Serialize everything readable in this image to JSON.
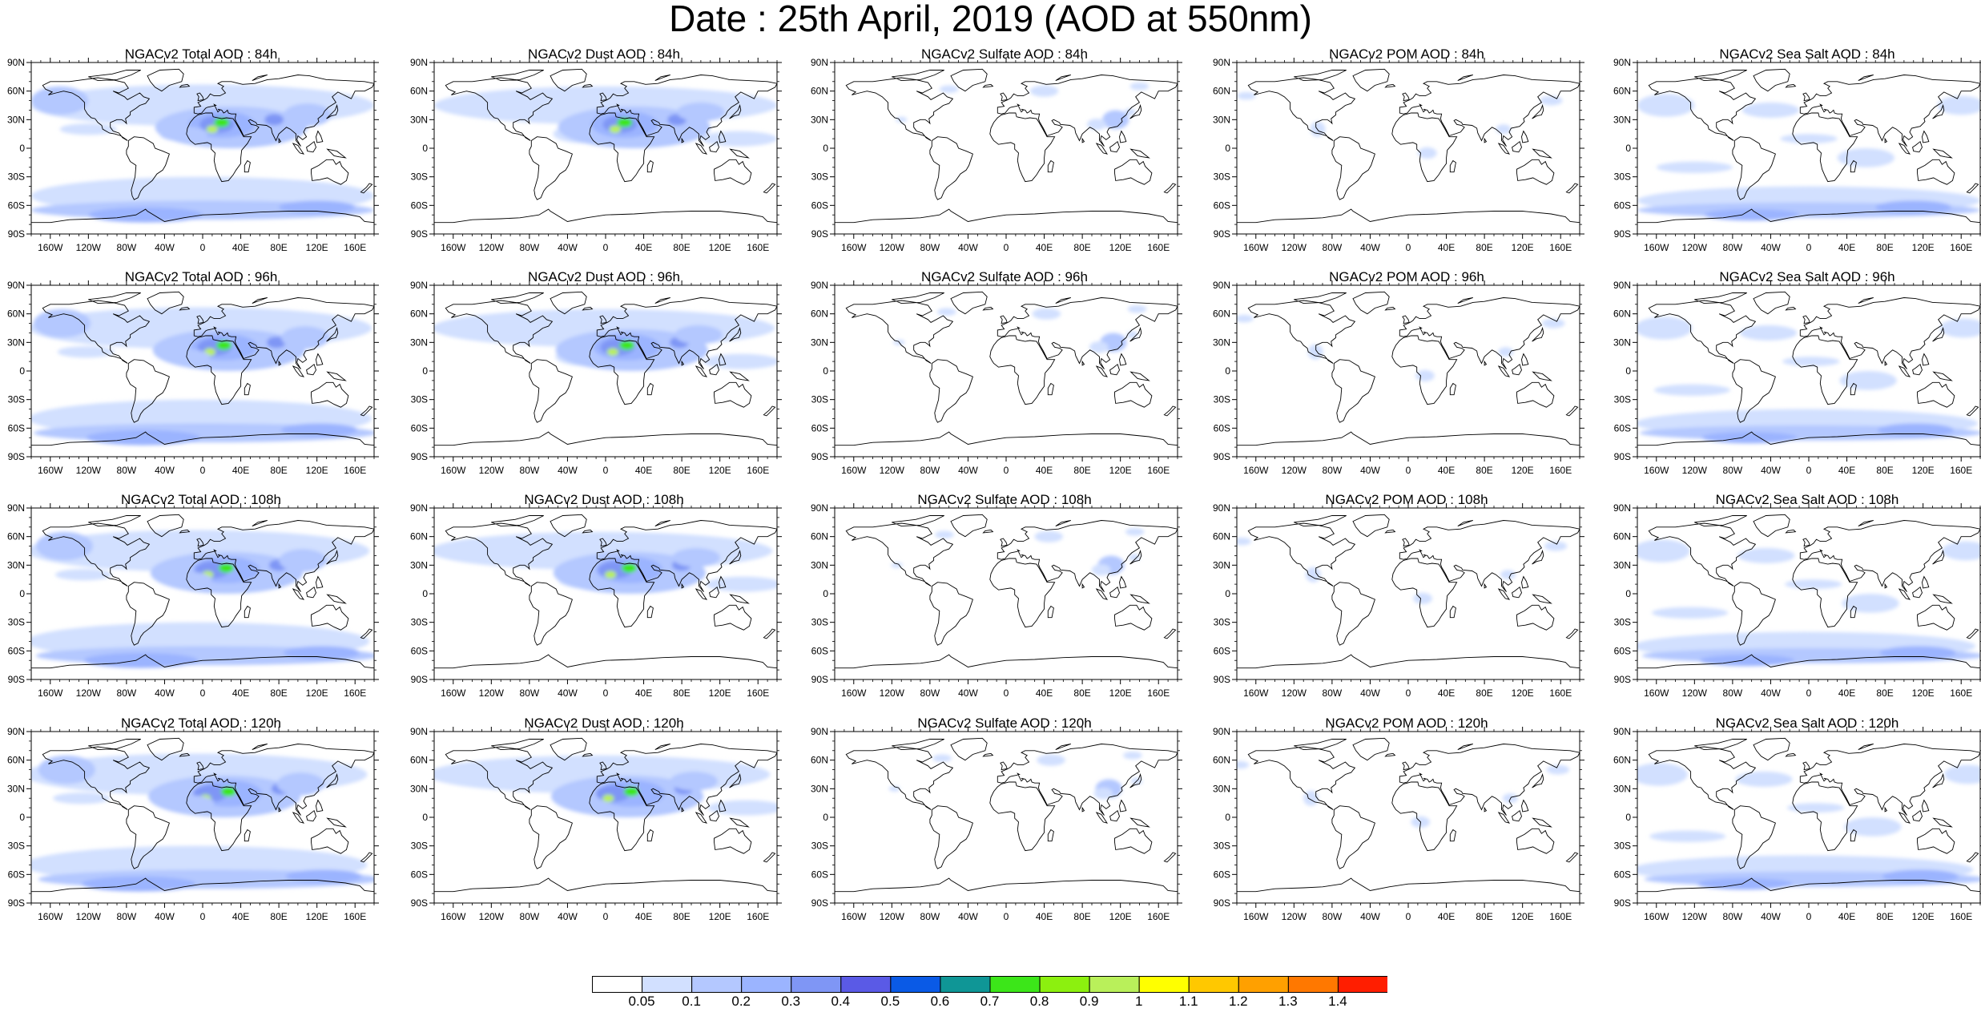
{
  "page": {
    "title": "Date : 25th April, 2019 (AOD at 550nm)"
  },
  "axes": {
    "lat_ticks": [
      "90N",
      "60N",
      "30N",
      "0",
      "30S",
      "60S",
      "90S"
    ],
    "lon_ticks": [
      "160W",
      "120W",
      "80W",
      "40W",
      "0",
      "40E",
      "80E",
      "120E",
      "160E"
    ]
  },
  "rows": [
    {
      "forecast_hour": "84h",
      "panels": [
        {
          "species": "total",
          "title": "NGACv2 Total AOD : 84h"
        },
        {
          "species": "dust",
          "title": "NGACv2 Dust AOD : 84h"
        },
        {
          "species": "sulfate",
          "title": "NGACv2 Sulfate AOD : 84h"
        },
        {
          "species": "pom",
          "title": "NGACv2 POM AOD : 84h"
        },
        {
          "species": "seasalt",
          "title": "NGACv2 Sea Salt AOD : 84h"
        }
      ]
    },
    {
      "forecast_hour": "96h",
      "panels": [
        {
          "species": "total",
          "title": "NGACv2 Total AOD : 96h"
        },
        {
          "species": "dust",
          "title": "NGACv2 Dust AOD : 96h"
        },
        {
          "species": "sulfate",
          "title": "NGACv2 Sulfate AOD : 96h"
        },
        {
          "species": "pom",
          "title": "NGACv2 POM AOD : 96h"
        },
        {
          "species": "seasalt",
          "title": "NGACv2 Sea Salt AOD : 96h"
        }
      ]
    },
    {
      "forecast_hour": "108h",
      "panels": [
        {
          "species": "total",
          "title": "NGACv2 Total AOD : 108h"
        },
        {
          "species": "dust",
          "title": "NGACv2 Dust AOD : 108h"
        },
        {
          "species": "sulfate",
          "title": "NGACv2 Sulfate AOD : 108h"
        },
        {
          "species": "pom",
          "title": "NGACv2 POM AOD : 108h"
        },
        {
          "species": "seasalt",
          "title": "NGACv2 Sea Salt AOD : 108h"
        }
      ]
    },
    {
      "forecast_hour": "120h",
      "panels": [
        {
          "species": "total",
          "title": "NGACv2 Total AOD : 120h"
        },
        {
          "species": "dust",
          "title": "NGACv2 Dust AOD : 120h"
        },
        {
          "species": "sulfate",
          "title": "NGACv2 Sulfate AOD : 120h"
        },
        {
          "species": "pom",
          "title": "NGACv2 POM AOD : 120h"
        },
        {
          "species": "seasalt",
          "title": "NGACv2 Sea Salt  AOD : 120h"
        }
      ]
    }
  ],
  "colorbar": {
    "labels": [
      "0.05",
      "0.1",
      "0.2",
      "0.3",
      "0.4",
      "0.5",
      "0.6",
      "0.7",
      "0.8",
      "0.9",
      "1",
      "1.1",
      "1.2",
      "1.3",
      "1.4"
    ],
    "colors": [
      "#ffffff",
      "#d2e0ff",
      "#b4c8ff",
      "#9bb4ff",
      "#7f96f5",
      "#5a5ae6",
      "#0a5ae6",
      "#0f9696",
      "#3ce619",
      "#8cf00f",
      "#b9f05a",
      "#ffff00",
      "#ffc800",
      "#ffa000",
      "#ff7800",
      "#ff1e00"
    ]
  }
}
